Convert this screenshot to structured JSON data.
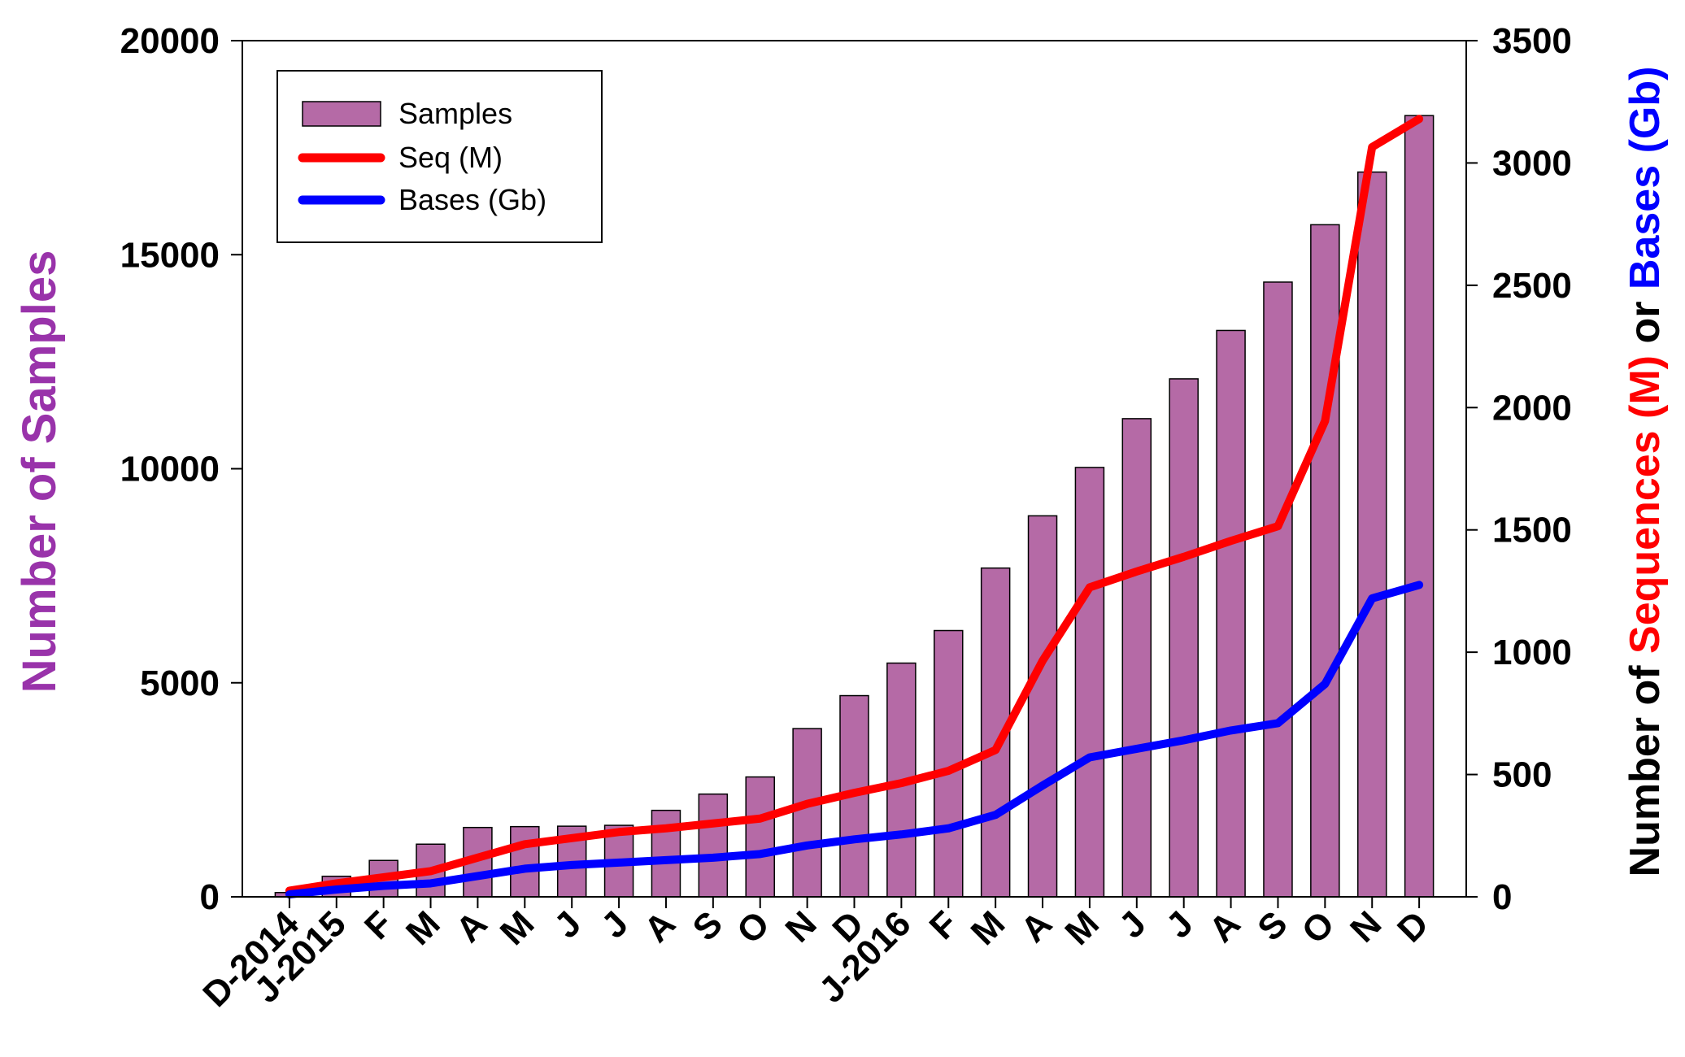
{
  "chart_data": {
    "type": "bar",
    "categories": [
      "D-2014",
      "J-2015",
      "F",
      "M",
      "A",
      "M",
      "J",
      "J",
      "A",
      "S",
      "O",
      "N",
      "D",
      "J-2016",
      "F",
      "M",
      "A",
      "M",
      "J",
      "J",
      "A",
      "S",
      "O",
      "N",
      "D"
    ],
    "series": [
      {
        "name": "Samples",
        "type": "bar",
        "axis": "left",
        "color": "#b56aa6",
        "values": [
          100,
          480,
          850,
          1230,
          1620,
          1640,
          1650,
          1670,
          2020,
          2400,
          2800,
          3930,
          4700,
          5460,
          6220,
          7680,
          8900,
          10030,
          11170,
          12100,
          13230,
          14360,
          15700,
          16930,
          18250
        ]
      },
      {
        "name": "Seq (M)",
        "type": "line",
        "axis": "right",
        "color": "#ff0000",
        "values": [
          25,
          55,
          80,
          105,
          160,
          215,
          240,
          265,
          280,
          300,
          320,
          380,
          425,
          465,
          515,
          600,
          965,
          1265,
          1330,
          1390,
          1455,
          1515,
          1945,
          3065,
          3180
        ]
      },
      {
        "name": "Bases (Gb)",
        "type": "line",
        "axis": "right",
        "color": "#0000ff",
        "values": [
          10,
          30,
          45,
          55,
          85,
          115,
          130,
          140,
          150,
          160,
          175,
          210,
          235,
          255,
          280,
          335,
          455,
          570,
          605,
          640,
          680,
          710,
          870,
          1220,
          1275
        ]
      }
    ],
    "y_left": {
      "label": "Number of Samples",
      "label_color": "#9933aa",
      "ylim": [
        0,
        20000
      ],
      "ticks": [
        "0",
        "5000",
        "10000",
        "15000",
        "20000"
      ]
    },
    "y_right": {
      "label_parts": [
        {
          "text": "Number of ",
          "color": "#000000"
        },
        {
          "text": "Sequences (M)",
          "color": "#ff0000"
        },
        {
          "text": " or ",
          "color": "#000000"
        },
        {
          "text": "Bases (Gb)",
          "color": "#0000ff"
        }
      ],
      "ylim": [
        0,
        3500
      ],
      "ticks": [
        "0",
        "500",
        "1000",
        "1500",
        "2000",
        "2500",
        "3000",
        "3500"
      ]
    },
    "legend": {
      "position": "top-left",
      "entries": [
        "Samples",
        "Seq (M)",
        "Bases (Gb)"
      ]
    },
    "grid": false
  }
}
